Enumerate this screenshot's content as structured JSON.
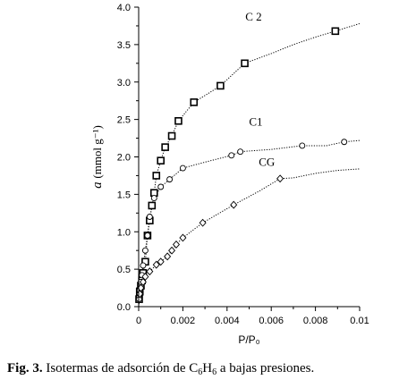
{
  "chart_data": {
    "type": "scatter",
    "title": "",
    "xlabel": "P/P₀",
    "ylabel_symbol": "a",
    "ylabel_unit": "(mmol g⁻¹)",
    "xlim": [
      0,
      0.01
    ],
    "ylim": [
      0,
      4.0
    ],
    "x_ticks": [
      0,
      0.002,
      0.004,
      0.006,
      0.008,
      0.01
    ],
    "x_tick_labels": [
      "0",
      "0.002",
      "0.004",
      "0.006",
      "0.008",
      "0.01"
    ],
    "y_ticks": [
      0,
      0.5,
      1.0,
      1.5,
      2.0,
      2.5,
      3.0,
      3.5,
      4.0
    ],
    "y_tick_labels": [
      "0.0",
      "0.5",
      "1.0",
      "1.5",
      "2.0",
      "2.5",
      "3.0",
      "3.5",
      "4.0"
    ],
    "grid": false,
    "legend": "none",
    "series": [
      {
        "name": "C 2",
        "marker": "square",
        "x": [
          2e-05,
          5e-05,
          0.0001,
          0.00015,
          0.0002,
          0.0003,
          0.0004,
          0.0005,
          0.0006,
          0.0007,
          0.0008,
          0.001,
          0.0012,
          0.0015,
          0.0018,
          0.0025,
          0.0037,
          0.0048,
          0.0089
        ],
        "y": [
          0.1,
          0.2,
          0.28,
          0.35,
          0.45,
          0.6,
          0.95,
          1.15,
          1.35,
          1.52,
          1.75,
          1.95,
          2.13,
          2.28,
          2.48,
          2.73,
          2.95,
          3.25,
          3.68
        ]
      },
      {
        "name": "C1",
        "marker": "circle",
        "x": [
          2e-05,
          5e-05,
          0.0001,
          0.00015,
          0.0002,
          0.0003,
          0.0004,
          0.0005,
          0.0007,
          0.001,
          0.0014,
          0.002,
          0.0042,
          0.0046,
          0.0074,
          0.0093
        ],
        "y": [
          0.12,
          0.22,
          0.33,
          0.42,
          0.55,
          0.75,
          0.95,
          1.2,
          1.45,
          1.6,
          1.7,
          1.85,
          2.02,
          2.07,
          2.15,
          2.2
        ]
      },
      {
        "name": "CG",
        "marker": "diamond",
        "x": [
          2e-05,
          5e-05,
          0.0001,
          0.0002,
          0.0003,
          0.0005,
          0.0008,
          0.001,
          0.0013,
          0.0015,
          0.0017,
          0.002,
          0.0029,
          0.0043,
          0.0064
        ],
        "y": [
          0.1,
          0.17,
          0.25,
          0.33,
          0.4,
          0.47,
          0.56,
          0.6,
          0.67,
          0.75,
          0.83,
          0.92,
          1.12,
          1.36,
          1.71
        ]
      }
    ],
    "curves": [
      {
        "name": "C 2",
        "x": [
          0,
          5e-05,
          0.0001,
          0.0002,
          0.0003,
          0.0004,
          0.0005,
          0.0006,
          0.0007,
          0.0008,
          0.001,
          0.0012,
          0.0015,
          0.0018,
          0.0025,
          0.003,
          0.0037,
          0.0048,
          0.006,
          0.007,
          0.008,
          0.0089,
          0.01
        ],
        "y": [
          0,
          0.2,
          0.28,
          0.45,
          0.6,
          0.95,
          1.15,
          1.35,
          1.52,
          1.75,
          1.95,
          2.13,
          2.28,
          2.48,
          2.73,
          2.82,
          2.95,
          3.25,
          3.38,
          3.5,
          3.6,
          3.68,
          3.78
        ]
      },
      {
        "name": "C1",
        "x": [
          0,
          5e-05,
          0.0001,
          0.0002,
          0.0003,
          0.0004,
          0.0005,
          0.0007,
          0.001,
          0.0014,
          0.002,
          0.003,
          0.0042,
          0.0046,
          0.006,
          0.0074,
          0.0085,
          0.0093,
          0.01
        ],
        "y": [
          0,
          0.22,
          0.33,
          0.55,
          0.75,
          0.95,
          1.2,
          1.45,
          1.6,
          1.7,
          1.85,
          1.93,
          2.02,
          2.07,
          2.1,
          2.15,
          2.15,
          2.2,
          2.22
        ]
      },
      {
        "name": "CG",
        "x": [
          0,
          5e-05,
          0.0001,
          0.0002,
          0.0003,
          0.0005,
          0.0008,
          0.001,
          0.0013,
          0.0015,
          0.0017,
          0.002,
          0.0029,
          0.0043,
          0.0055,
          0.0064,
          0.007,
          0.008,
          0.009,
          0.01
        ],
        "y": [
          0,
          0.17,
          0.25,
          0.33,
          0.4,
          0.47,
          0.56,
          0.6,
          0.67,
          0.75,
          0.83,
          0.92,
          1.12,
          1.36,
          1.55,
          1.71,
          1.72,
          1.78,
          1.82,
          1.84
        ]
      }
    ]
  },
  "caption": {
    "label": "Fig. 3.",
    "text_before": " Isotermas de adsorción de C",
    "sub1": "6",
    "mid": "H",
    "sub2": "6",
    "text_after": " a bajas presiones."
  }
}
